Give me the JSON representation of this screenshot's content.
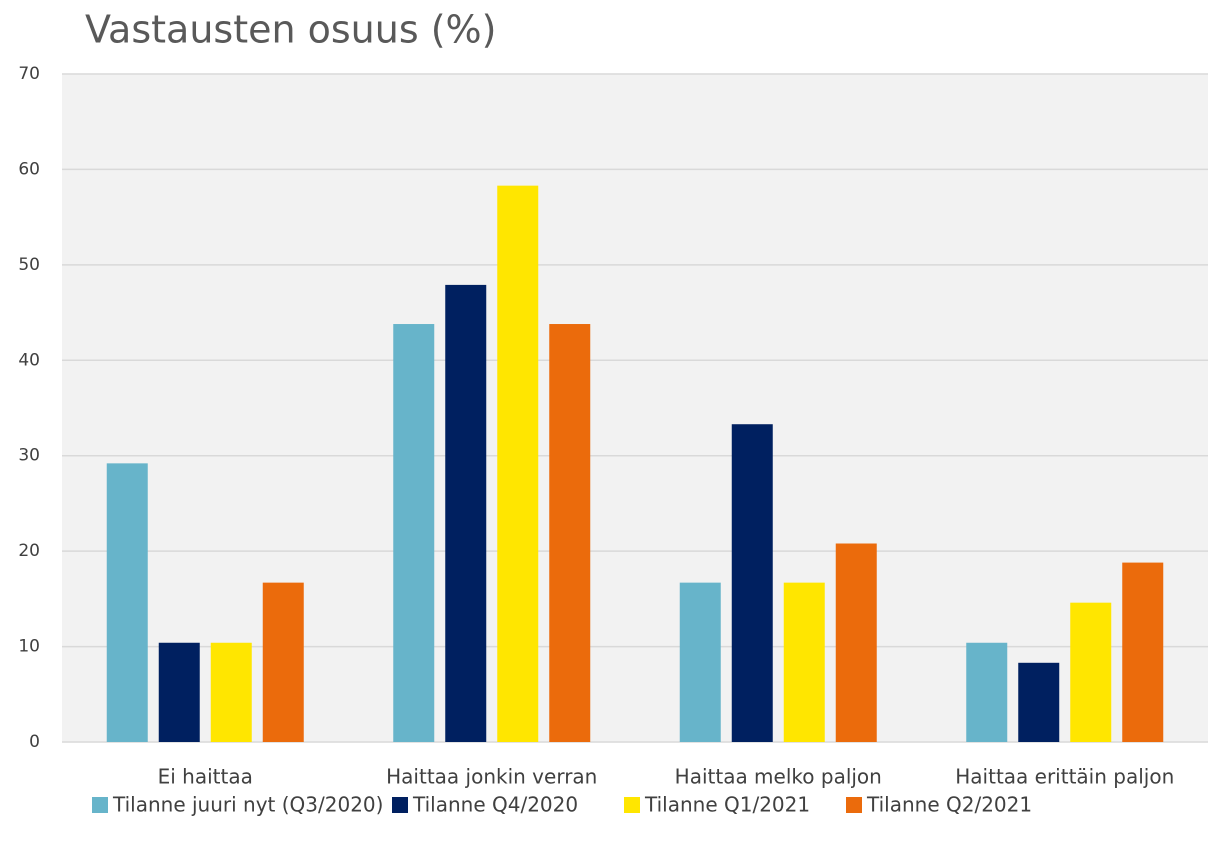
{
  "chart_data": {
    "type": "bar",
    "title": "Vastausten osuus (%)",
    "categories": [
      "Ei haittaa",
      "Haittaa jonkin verran",
      "Haittaa melko paljon",
      "Haittaa erittäin paljon"
    ],
    "series": [
      {
        "name": "Tilanne juuri nyt (Q3/2020)",
        "color": "#67b4ca",
        "values": [
          29.2,
          43.8,
          16.7,
          10.4
        ]
      },
      {
        "name": "Tilanne Q4/2020",
        "color": "#002060",
        "values": [
          10.4,
          47.9,
          33.3,
          8.3
        ]
      },
      {
        "name": "Tilanne Q1/2021",
        "color": "#ffe600",
        "values": [
          10.4,
          58.3,
          16.7,
          14.6
        ]
      },
      {
        "name": "Tilanne Q2/2021",
        "color": "#eb6b0c",
        "values": [
          16.7,
          43.8,
          20.8,
          18.8
        ]
      }
    ],
    "ylim": [
      0,
      70
    ],
    "yticks": [
      0,
      10,
      20,
      30,
      40,
      50,
      60,
      70
    ],
    "grid": true,
    "legend": "bottom"
  }
}
